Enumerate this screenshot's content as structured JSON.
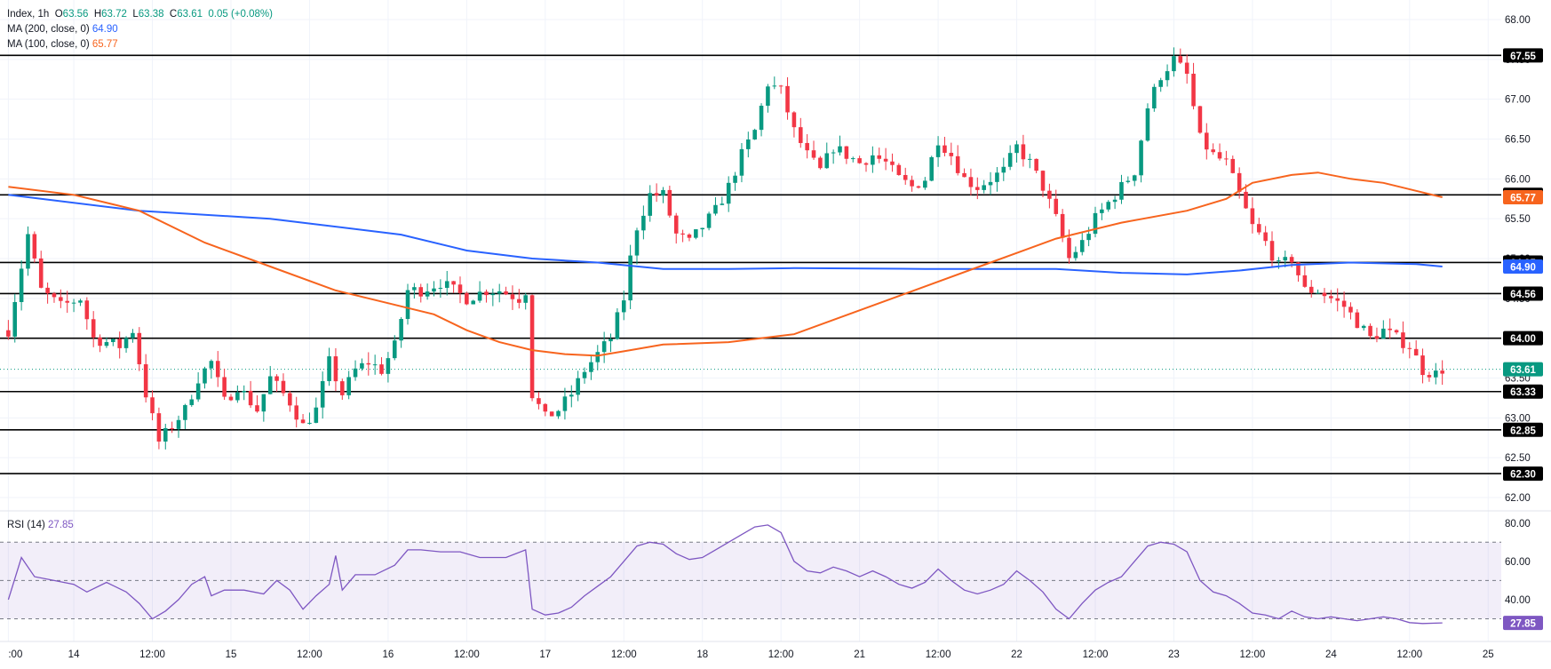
{
  "legend": {
    "symbol": "Index",
    "interval": "1h",
    "o_label": "O",
    "open": "63.56",
    "h_label": "H",
    "high": "63.72",
    "l_label": "L",
    "low": "63.38",
    "c_label": "C",
    "close": "63.61",
    "change": "0.05 (+0.08%)",
    "ma200_label": "MA (200, close, 0)",
    "ma200_value": "64.90",
    "ma100_label": "MA (100, close, 0)",
    "ma100_value": "65.77",
    "rsi_label": "RSI (14)",
    "rsi_value": "27.85"
  },
  "colors": {
    "up": "#089981",
    "down": "#f23645",
    "ma200": "#2962ff",
    "ma100": "#f7641e",
    "rsi": "#7e57c2",
    "hline": "#000000",
    "grid": "#f0f3fa"
  },
  "chart_data": {
    "type": "candlestick",
    "ylim": [
      62.0,
      68.0
    ],
    "y_ticks": [
      "62.00",
      "62.50",
      "63.00",
      "63.50",
      "64.00",
      "64.50",
      "65.00",
      "65.50",
      "66.00",
      "66.50",
      "67.00",
      "67.50",
      "68.00"
    ],
    "x_ticks": [
      {
        "label": ":00",
        "t": 0
      },
      {
        "label": "14",
        "t": 10
      },
      {
        "label": "12:00",
        "t": 22
      },
      {
        "label": "15",
        "t": 34
      },
      {
        "label": "12:00",
        "t": 46
      },
      {
        "label": "16",
        "t": 58
      },
      {
        "label": "12:00",
        "t": 70
      },
      {
        "label": "17",
        "t": 82
      },
      {
        "label": "12:00",
        "t": 94
      },
      {
        "label": "18",
        "t": 106
      },
      {
        "label": "12:00",
        "t": 118
      },
      {
        "label": "21",
        "t": 130
      },
      {
        "label": "12:00",
        "t": 142
      },
      {
        "label": "22",
        "t": 154
      },
      {
        "label": "12:00",
        "t": 166
      },
      {
        "label": "23",
        "t": 178
      },
      {
        "label": "12:00",
        "t": 190
      },
      {
        "label": "24",
        "t": 202
      },
      {
        "label": "12:00",
        "t": 214
      },
      {
        "label": "25",
        "t": 226
      }
    ],
    "horizontal_levels": [
      {
        "value": 67.55,
        "label": "67.55"
      },
      {
        "value": 65.8,
        "label": "65.80"
      },
      {
        "value": 64.95,
        "label": "64.95"
      },
      {
        "value": 64.56,
        "label": "64.56"
      },
      {
        "value": 64.0,
        "label": "64.00"
      },
      {
        "value": 63.33,
        "label": "63.33"
      },
      {
        "value": 62.85,
        "label": "62.85"
      },
      {
        "value": 62.3,
        "label": "62.30"
      }
    ],
    "price_badges": [
      {
        "value": 63.61,
        "label": "63.61",
        "kind": "last"
      },
      {
        "value": 65.77,
        "label": "65.77",
        "kind": "ma100"
      },
      {
        "value": 64.9,
        "label": "64.90",
        "kind": "ma200"
      }
    ],
    "close_path": [
      [
        0,
        64.1
      ],
      [
        3,
        65.3
      ],
      [
        5,
        64.6
      ],
      [
        8,
        64.4
      ],
      [
        11,
        64.5
      ],
      [
        13,
        64.0
      ],
      [
        17,
        63.9
      ],
      [
        19,
        64.1
      ],
      [
        21,
        63.3
      ],
      [
        23,
        62.7
      ],
      [
        25,
        62.9
      ],
      [
        27,
        63.1
      ],
      [
        29,
        63.5
      ],
      [
        31,
        63.7
      ],
      [
        33,
        63.2
      ],
      [
        35,
        63.4
      ],
      [
        38,
        63.1
      ],
      [
        40,
        63.5
      ],
      [
        43,
        63.2
      ],
      [
        45,
        62.9
      ],
      [
        47,
        63.1
      ],
      [
        49,
        63.7
      ],
      [
        51,
        63.3
      ],
      [
        53,
        63.6
      ],
      [
        55,
        63.7
      ],
      [
        57,
        63.6
      ],
      [
        59,
        63.9
      ],
      [
        61,
        64.6
      ],
      [
        63,
        64.6
      ],
      [
        66,
        64.7
      ],
      [
        68,
        64.6
      ],
      [
        70,
        64.5
      ],
      [
        73,
        64.6
      ],
      [
        75,
        64.6
      ],
      [
        78,
        64.5
      ],
      [
        79,
        64.6
      ],
      [
        80,
        63.3
      ],
      [
        82,
        63.0
      ],
      [
        84,
        63.1
      ],
      [
        86,
        63.3
      ],
      [
        88,
        63.6
      ],
      [
        90,
        63.8
      ],
      [
        92,
        64.0
      ],
      [
        94,
        64.5
      ],
      [
        95,
        65.0
      ],
      [
        96,
        65.4
      ],
      [
        98,
        65.8
      ],
      [
        100,
        65.8
      ],
      [
        102,
        65.3
      ],
      [
        104,
        65.2
      ],
      [
        106,
        65.4
      ],
      [
        108,
        65.6
      ],
      [
        110,
        65.9
      ],
      [
        112,
        66.3
      ],
      [
        114,
        66.6
      ],
      [
        116,
        67.2
      ],
      [
        118,
        67.1
      ],
      [
        120,
        66.6
      ],
      [
        122,
        66.3
      ],
      [
        124,
        66.1
      ],
      [
        126,
        66.4
      ],
      [
        128,
        66.3
      ],
      [
        130,
        66.2
      ],
      [
        132,
        66.3
      ],
      [
        134,
        66.2
      ],
      [
        136,
        66.0
      ],
      [
        138,
        65.9
      ],
      [
        140,
        66.0
      ],
      [
        142,
        66.5
      ],
      [
        144,
        66.3
      ],
      [
        146,
        66.0
      ],
      [
        148,
        65.9
      ],
      [
        150,
        66.0
      ],
      [
        152,
        66.1
      ],
      [
        154,
        66.4
      ],
      [
        156,
        66.2
      ],
      [
        158,
        65.9
      ],
      [
        160,
        65.5
      ],
      [
        162,
        65.0
      ],
      [
        164,
        65.2
      ],
      [
        166,
        65.5
      ],
      [
        168,
        65.7
      ],
      [
        170,
        65.9
      ],
      [
        172,
        66.1
      ],
      [
        174,
        66.9
      ],
      [
        176,
        67.3
      ],
      [
        178,
        67.5
      ],
      [
        180,
        67.3
      ],
      [
        182,
        66.5
      ],
      [
        184,
        66.3
      ],
      [
        186,
        66.2
      ],
      [
        188,
        65.8
      ],
      [
        190,
        65.4
      ],
      [
        192,
        65.2
      ],
      [
        194,
        64.9
      ],
      [
        196,
        65.0
      ],
      [
        198,
        64.6
      ],
      [
        200,
        64.6
      ],
      [
        202,
        64.5
      ],
      [
        204,
        64.4
      ],
      [
        206,
        64.2
      ],
      [
        208,
        64.0
      ],
      [
        210,
        64.1
      ],
      [
        212,
        64.0
      ],
      [
        214,
        63.9
      ],
      [
        216,
        63.6
      ],
      [
        218,
        63.55
      ],
      [
        219,
        63.61
      ]
    ],
    "ma200_path": [
      [
        0,
        65.8
      ],
      [
        20,
        65.6
      ],
      [
        40,
        65.5
      ],
      [
        60,
        65.3
      ],
      [
        70,
        65.1
      ],
      [
        80,
        65.0
      ],
      [
        90,
        64.95
      ],
      [
        100,
        64.87
      ],
      [
        110,
        64.87
      ],
      [
        120,
        64.88
      ],
      [
        140,
        64.87
      ],
      [
        160,
        64.87
      ],
      [
        170,
        64.82
      ],
      [
        180,
        64.8
      ],
      [
        188,
        64.85
      ],
      [
        196,
        64.92
      ],
      [
        205,
        64.95
      ],
      [
        215,
        64.93
      ],
      [
        219,
        64.9
      ]
    ],
    "ma100_path": [
      [
        0,
        65.9
      ],
      [
        10,
        65.8
      ],
      [
        20,
        65.6
      ],
      [
        30,
        65.2
      ],
      [
        40,
        64.9
      ],
      [
        50,
        64.6
      ],
      [
        60,
        64.4
      ],
      [
        65,
        64.3
      ],
      [
        70,
        64.1
      ],
      [
        75,
        63.95
      ],
      [
        80,
        63.85
      ],
      [
        85,
        63.8
      ],
      [
        90,
        63.78
      ],
      [
        95,
        63.85
      ],
      [
        100,
        63.92
      ],
      [
        110,
        63.95
      ],
      [
        120,
        64.05
      ],
      [
        130,
        64.35
      ],
      [
        140,
        64.65
      ],
      [
        150,
        64.95
      ],
      [
        160,
        65.25
      ],
      [
        170,
        65.45
      ],
      [
        180,
        65.6
      ],
      [
        186,
        65.75
      ],
      [
        190,
        65.95
      ],
      [
        196,
        66.05
      ],
      [
        200,
        66.08
      ],
      [
        205,
        66.0
      ],
      [
        210,
        65.95
      ],
      [
        215,
        65.85
      ],
      [
        219,
        65.77
      ]
    ],
    "rsi": {
      "ylim": [
        20,
        85
      ],
      "y_ticks": [
        "40.00",
        "60.00",
        "80.00"
      ],
      "levels": [
        70,
        50,
        30
      ],
      "last": 27.85,
      "path": [
        [
          0,
          40
        ],
        [
          2,
          62
        ],
        [
          4,
          52
        ],
        [
          7,
          50
        ],
        [
          10,
          48
        ],
        [
          12,
          44
        ],
        [
          15,
          49
        ],
        [
          18,
          44
        ],
        [
          20,
          38
        ],
        [
          22,
          30
        ],
        [
          24,
          34
        ],
        [
          26,
          40
        ],
        [
          28,
          48
        ],
        [
          30,
          52
        ],
        [
          31,
          42
        ],
        [
          33,
          45
        ],
        [
          36,
          45
        ],
        [
          39,
          43
        ],
        [
          41,
          50
        ],
        [
          43,
          45
        ],
        [
          45,
          35
        ],
        [
          47,
          42
        ],
        [
          49,
          48
        ],
        [
          50,
          63
        ],
        [
          51,
          45
        ],
        [
          53,
          53
        ],
        [
          56,
          53
        ],
        [
          59,
          58
        ],
        [
          61,
          66
        ],
        [
          63,
          66
        ],
        [
          66,
          65
        ],
        [
          69,
          65
        ],
        [
          72,
          62
        ],
        [
          76,
          62
        ],
        [
          79,
          66
        ],
        [
          80,
          35
        ],
        [
          82,
          32
        ],
        [
          84,
          33
        ],
        [
          86,
          36
        ],
        [
          88,
          42
        ],
        [
          90,
          47
        ],
        [
          92,
          52
        ],
        [
          94,
          60
        ],
        [
          96,
          68
        ],
        [
          98,
          70
        ],
        [
          100,
          69
        ],
        [
          102,
          64
        ],
        [
          104,
          61
        ],
        [
          106,
          62
        ],
        [
          108,
          66
        ],
        [
          110,
          70
        ],
        [
          112,
          74
        ],
        [
          114,
          78
        ],
        [
          116,
          79
        ],
        [
          118,
          75
        ],
        [
          120,
          60
        ],
        [
          122,
          55
        ],
        [
          124,
          54
        ],
        [
          126,
          57
        ],
        [
          128,
          55
        ],
        [
          130,
          52
        ],
        [
          132,
          55
        ],
        [
          134,
          52
        ],
        [
          136,
          48
        ],
        [
          138,
          46
        ],
        [
          140,
          49
        ],
        [
          142,
          56
        ],
        [
          144,
          50
        ],
        [
          146,
          45
        ],
        [
          148,
          43
        ],
        [
          150,
          45
        ],
        [
          152,
          48
        ],
        [
          154,
          55
        ],
        [
          156,
          50
        ],
        [
          158,
          44
        ],
        [
          160,
          35
        ],
        [
          162,
          30
        ],
        [
          164,
          38
        ],
        [
          166,
          45
        ],
        [
          168,
          49
        ],
        [
          170,
          52
        ],
        [
          172,
          60
        ],
        [
          174,
          68
        ],
        [
          176,
          70
        ],
        [
          178,
          69
        ],
        [
          180,
          65
        ],
        [
          182,
          50
        ],
        [
          184,
          44
        ],
        [
          186,
          42
        ],
        [
          188,
          38
        ],
        [
          190,
          33
        ],
        [
          192,
          32
        ],
        [
          194,
          30
        ],
        [
          196,
          34
        ],
        [
          198,
          31
        ],
        [
          200,
          30
        ],
        [
          202,
          31
        ],
        [
          204,
          30
        ],
        [
          206,
          29
        ],
        [
          208,
          30
        ],
        [
          210,
          31
        ],
        [
          212,
          30
        ],
        [
          214,
          28
        ],
        [
          216,
          27.5
        ],
        [
          219,
          27.85
        ]
      ]
    }
  }
}
